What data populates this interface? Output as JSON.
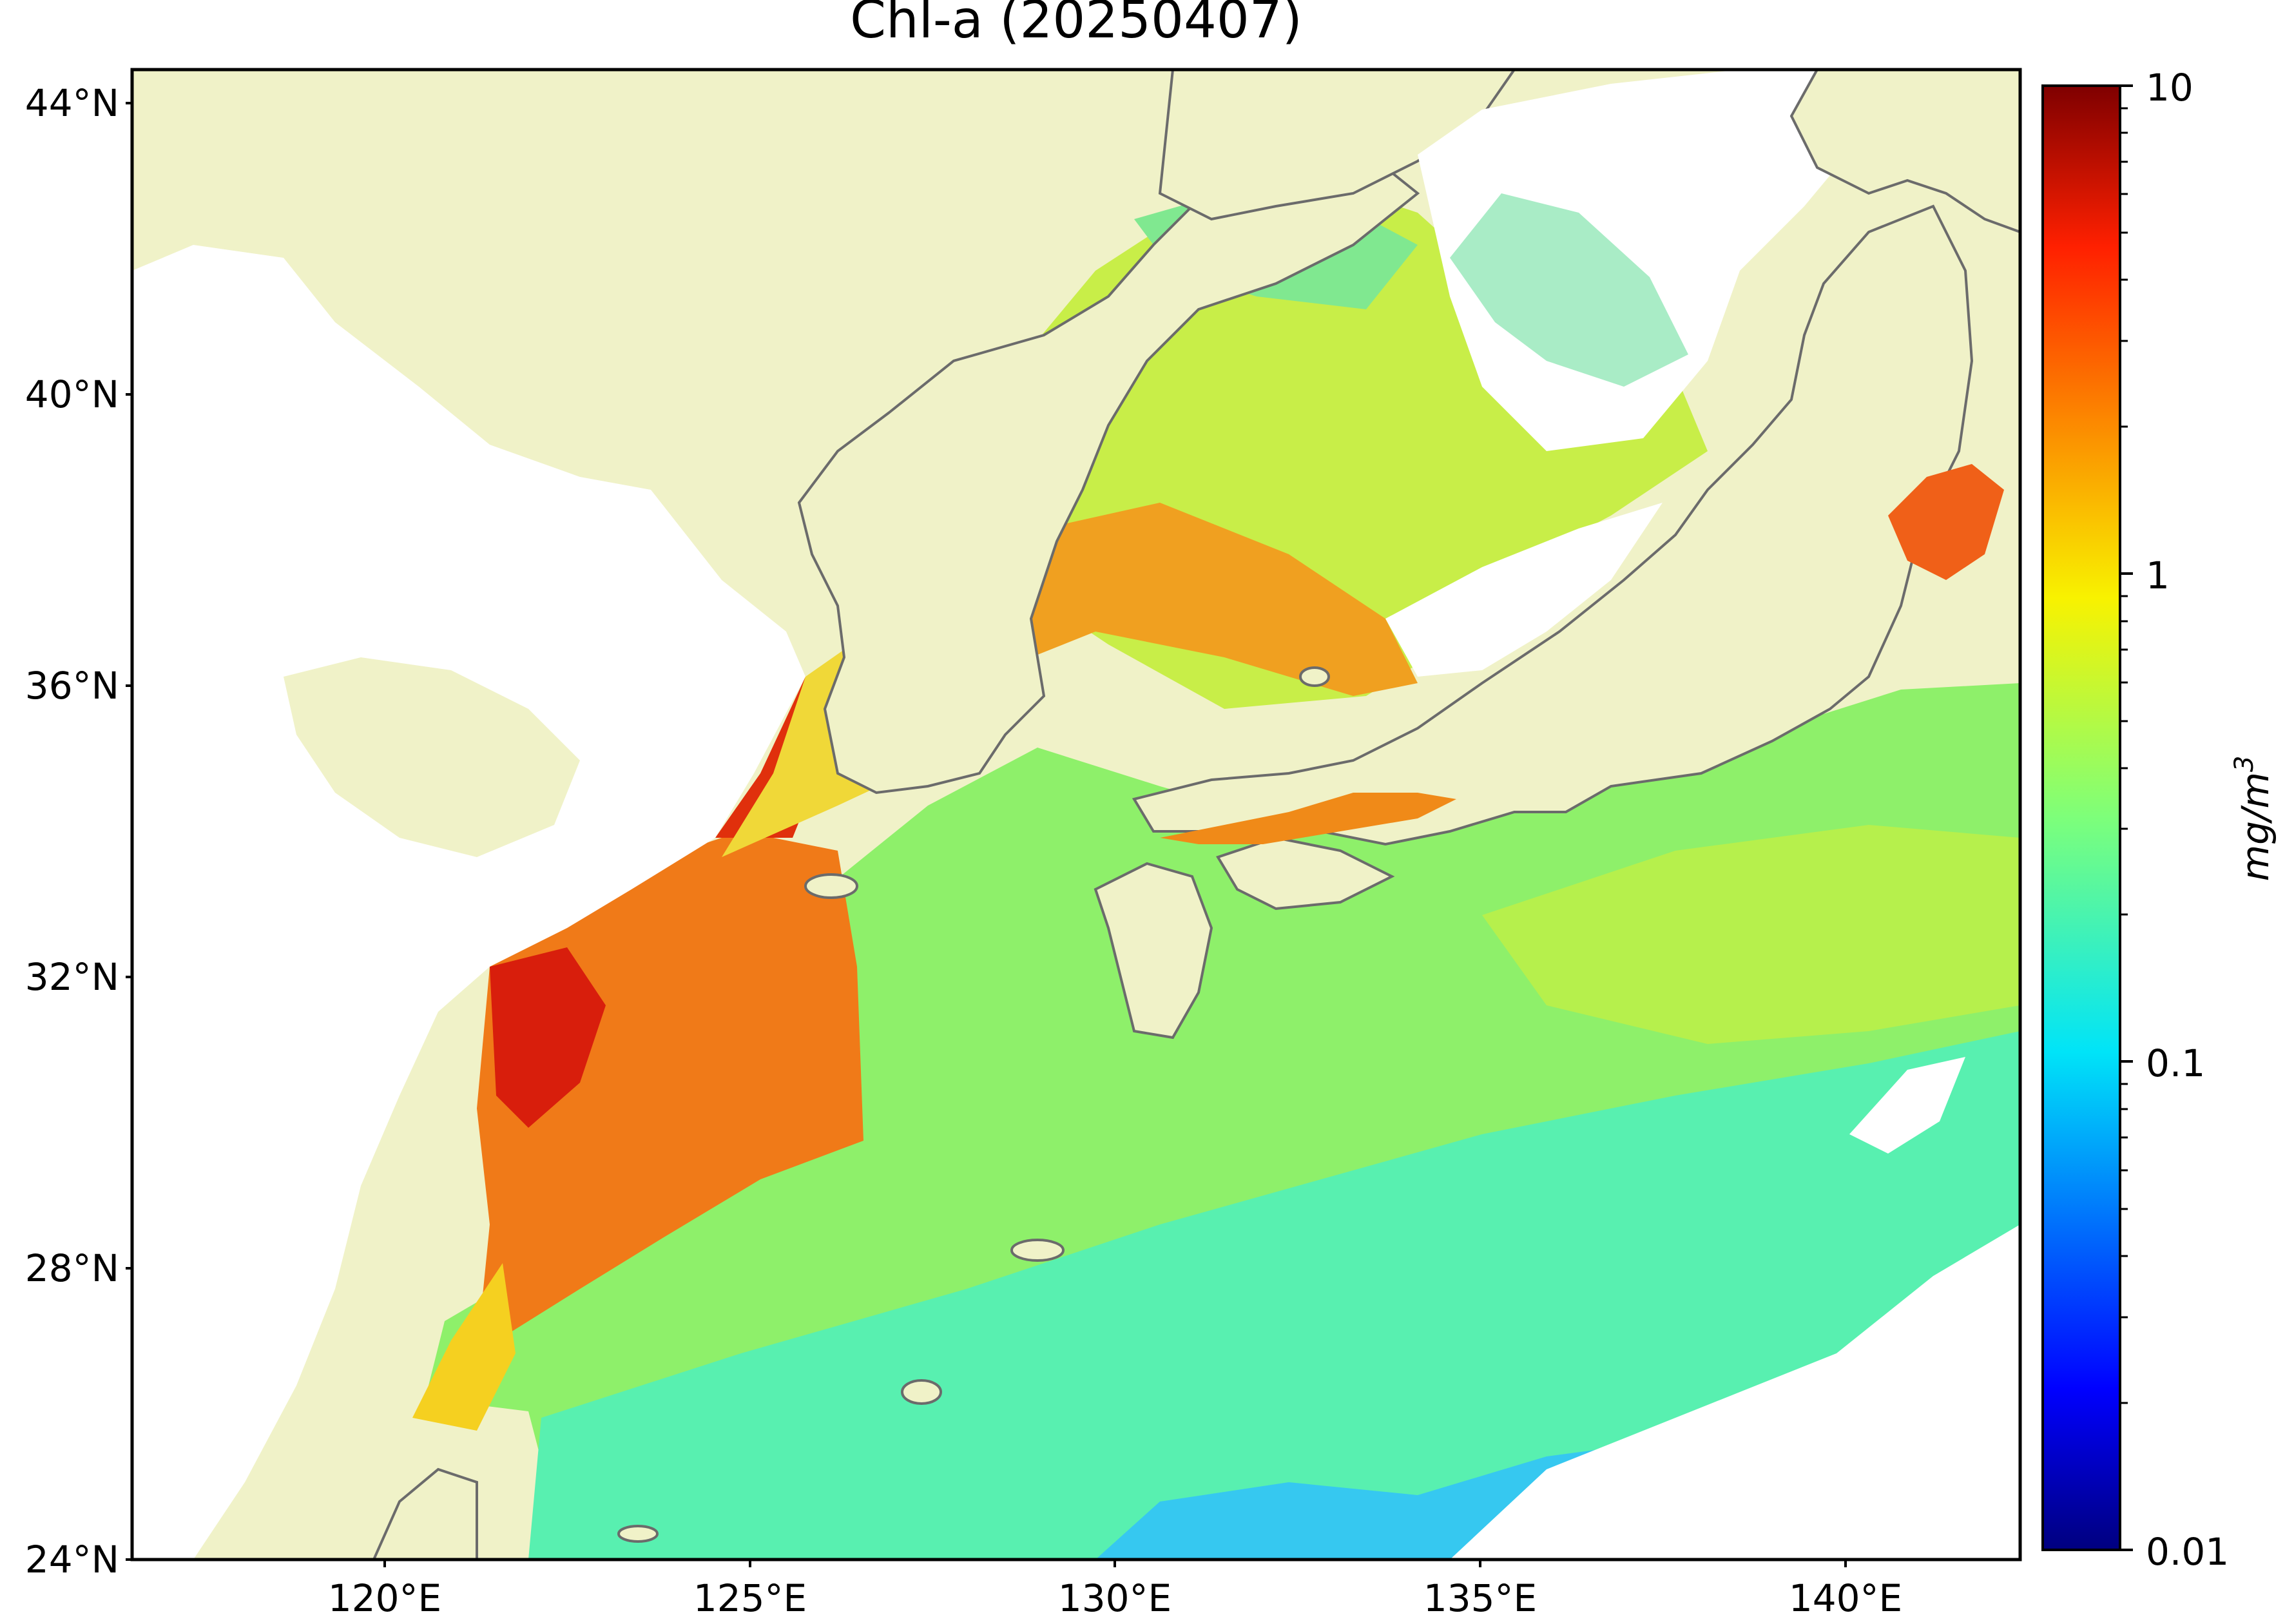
{
  "map": {
    "title": "Chl-a (20250407)",
    "lat_ticks": [
      "24°N",
      "28°N",
      "32°N",
      "36°N",
      "40°N",
      "44°N"
    ],
    "lon_ticks": [
      "120°E",
      "125°E",
      "130°E",
      "135°E",
      "140°E"
    ]
  },
  "colorbar": {
    "label": "mg/m",
    "label_exponent": "3",
    "ticks": [
      "0.01",
      "0.1",
      "1",
      "10"
    ],
    "scale": "log",
    "range": [
      0.01,
      10
    ],
    "colormap": "jet"
  },
  "colors": {
    "land": "#f0f2c8",
    "no_data": "#ffffff",
    "coastline": "#6b6b6b",
    "frame": "#000000"
  }
}
